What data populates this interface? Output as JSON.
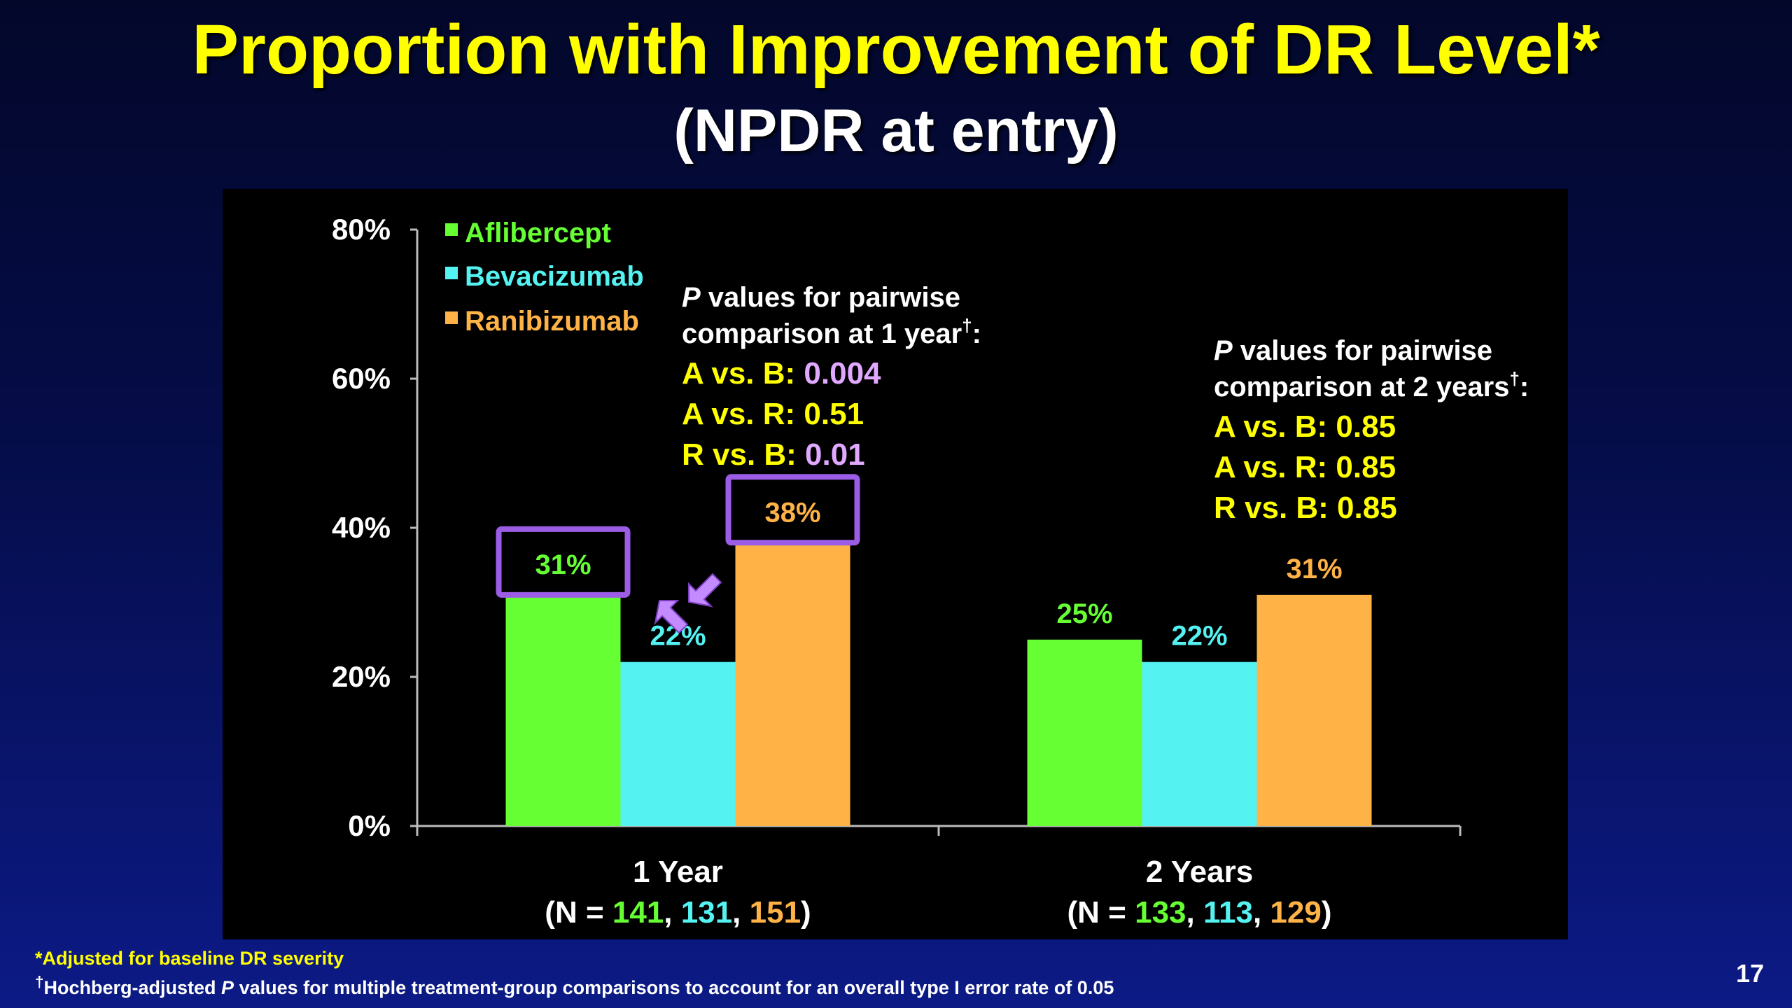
{
  "title": "Proportion with Improvement of DR Level*",
  "subtitle": "(NPDR at entry)",
  "chart_data": {
    "type": "bar",
    "categories": [
      "1 Year",
      "2 Years"
    ],
    "category_n_prefix": "(N = ",
    "category_n_suffix": ")",
    "category_n": [
      [
        "141",
        "131",
        "151"
      ],
      [
        "133",
        "113",
        "129"
      ]
    ],
    "series": [
      {
        "name": "Aflibercept",
        "color": "#66ff33",
        "values": [
          31,
          25
        ]
      },
      {
        "name": "Bevacizumab",
        "color": "#55f2f2",
        "values": [
          22,
          22
        ]
      },
      {
        "name": "Ranibizumab",
        "color": "#ffb347",
        "values": [
          38,
          31
        ]
      }
    ],
    "ylim": [
      0,
      80
    ],
    "yticks": [
      "0%",
      "20%",
      "40%",
      "60%",
      "80%"
    ],
    "ytick_values": [
      0,
      20,
      40,
      60,
      80
    ],
    "value_suffix": "%",
    "highlighted": [
      [
        0,
        0
      ],
      [
        2,
        0
      ]
    ],
    "highlight_color": "#9b5de5",
    "legend_position": "top-left",
    "annotations": [
      {
        "line1_italic": "P",
        "line1_rest": " values for pairwise",
        "line2": "comparison at 1 year",
        "line2_sup": "†",
        "line2_end": ":",
        "comparisons": [
          {
            "label": "A vs. B: ",
            "value": "0.004",
            "value_color": "#e0a8ff"
          },
          {
            "label": "A vs. R: ",
            "value": "0.51",
            "value_color": "#ffff00"
          },
          {
            "label": "R vs. B: ",
            "value": "0.01",
            "value_color": "#e0a8ff"
          }
        ]
      },
      {
        "line1_italic": "P",
        "line1_rest": " values for pairwise",
        "line2": "comparison at 2 years",
        "line2_sup": "†",
        "line2_end": ":",
        "comparisons": [
          {
            "label": "A vs. B: ",
            "value": "0.85",
            "value_color": "#ffff00"
          },
          {
            "label": "A vs. R: ",
            "value": "0.85",
            "value_color": "#ffff00"
          },
          {
            "label": "R vs. B: ",
            "value": "0.85",
            "value_color": "#ffff00"
          }
        ]
      }
    ]
  },
  "footnotes": {
    "adjusted": "*Adjusted for baseline DR severity",
    "dagger": "†",
    "hochberg_pre": "Hochberg-adjusted ",
    "hochberg_italic": "P",
    "hochberg_post": " values for multiple treatment-group comparisons to account for an overall type I error rate of 0.05"
  },
  "page_number": "17"
}
